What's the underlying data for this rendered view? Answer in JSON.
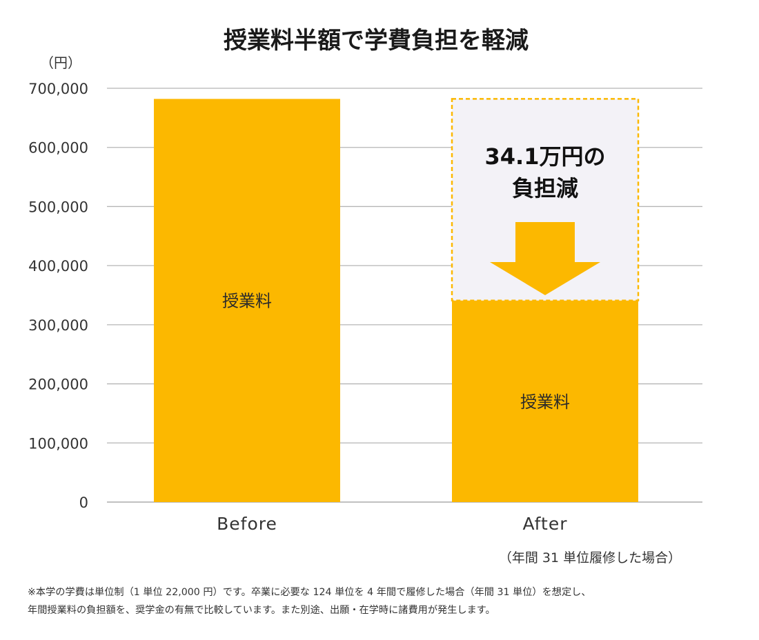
{
  "chart_data": {
    "type": "bar",
    "title": "授業料半額で学費負担を軽減",
    "ylabel": "（円）",
    "ylim": [
      0,
      700000
    ],
    "yticks": [
      0,
      100000,
      200000,
      300000,
      400000,
      500000,
      600000,
      700000
    ],
    "ytick_labels": [
      "0",
      "100,000",
      "200,000",
      "300,000",
      "400,000",
      "500,000",
      "600,000",
      "700,000"
    ],
    "categories": [
      "Before",
      "After"
    ],
    "values": [
      682000,
      341000
    ],
    "bar_labels": [
      "授業料",
      "授業料"
    ],
    "grid": true,
    "bar_color": "#FCB800",
    "annotation": {
      "lines": [
        "34.1万円の",
        "負担減"
      ],
      "box_color": "#F3F2F7",
      "border_color": "#FCB800",
      "arrow_color": "#FCB800",
      "top_value": 682000,
      "bottom_value": 341000
    },
    "note": "（年間 31 単位履修した場合）"
  },
  "footnote": [
    "※本学の学費は単位制（1 単位 22,000 円）です。卒業に必要な 124 単位を 4 年間で履修した場合（年間 31 単位）を想定し、",
    "年間授業料の負担額を、奨学金の有無で比較しています。また別途、出願・在学時に諸費用が発生します。"
  ]
}
